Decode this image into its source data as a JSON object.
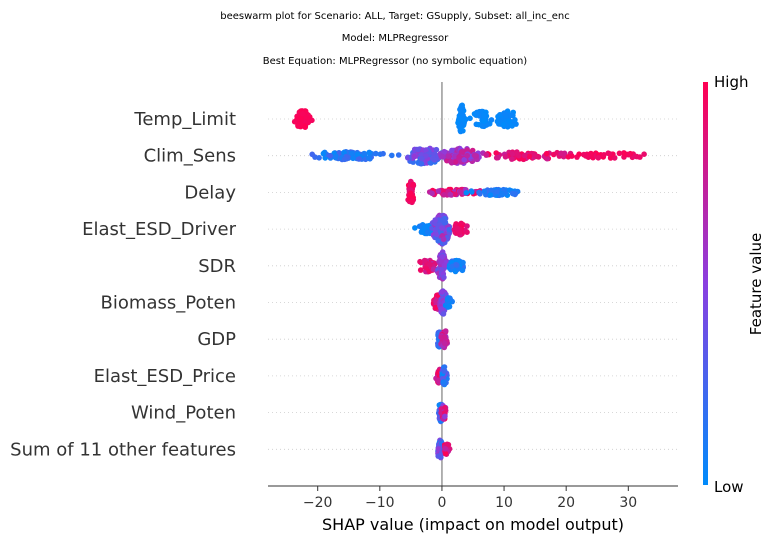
{
  "chart_data": {
    "type": "scatter",
    "subtype": "beeswarm",
    "title_lines": [
      "beeswarm plot for Scenario: ALL, Target: GSupply, Subset: all_inc_enc",
      "Model: MLPRegressor",
      "Best Equation: MLPRegressor (no symbolic equation)"
    ],
    "xlabel": "SHAP value (impact on model output)",
    "xlim": [
      -28,
      38
    ],
    "xticks": [
      {
        "value": -20,
        "label": "−20"
      },
      {
        "value": -10,
        "label": "−10"
      },
      {
        "value": 0,
        "label": "0"
      },
      {
        "value": 10,
        "label": "10"
      },
      {
        "value": 20,
        "label": "20"
      },
      {
        "value": 30,
        "label": "30"
      }
    ],
    "grid": "horizontal-dotted",
    "colorbar": {
      "label": "Feature value",
      "high_label": "High",
      "low_label": "Low",
      "high_color": "#ff0052",
      "low_color": "#008bfb"
    },
    "features": [
      {
        "name": "Temp_Limit",
        "clusters": [
          {
            "center": -22.5,
            "spread": 1.2,
            "count": 60,
            "color_low": 0.95,
            "color_high": 1.0,
            "width": 9
          },
          {
            "center": 3.2,
            "spread": 0.6,
            "count": 45,
            "color_low": 0.0,
            "color_high": 0.05,
            "width": 14
          },
          {
            "center": 6.5,
            "spread": 1.6,
            "count": 45,
            "color_low": 0.0,
            "color_high": 0.05,
            "width": 8
          },
          {
            "center": 10.5,
            "spread": 1.6,
            "count": 45,
            "color_low": 0.0,
            "color_high": 0.05,
            "width": 8
          }
        ]
      },
      {
        "name": "Clim_Sens",
        "clusters": [
          {
            "center": -15,
            "spread": 7,
            "count": 80,
            "color_low": 0.0,
            "color_high": 0.25,
            "width": 4
          },
          {
            "center": -3,
            "spread": 3,
            "count": 90,
            "color_low": 0.15,
            "color_high": 0.55,
            "width": 8
          },
          {
            "center": 3,
            "spread": 3,
            "count": 90,
            "color_low": 0.45,
            "color_high": 0.8,
            "width": 8
          },
          {
            "center": 14,
            "spread": 6,
            "count": 60,
            "color_low": 0.75,
            "color_high": 1.0,
            "width": 4
          },
          {
            "center": 27,
            "spread": 6,
            "count": 40,
            "color_low": 0.9,
            "color_high": 1.0,
            "width": 3
          }
        ]
      },
      {
        "name": "Delay",
        "clusters": [
          {
            "center": -5,
            "spread": 0.5,
            "count": 55,
            "color_low": 0.85,
            "color_high": 1.0,
            "width": 11
          },
          {
            "center": 2,
            "spread": 4,
            "count": 60,
            "color_low": 0.6,
            "color_high": 1.0,
            "width": 3
          },
          {
            "center": 9,
            "spread": 4,
            "count": 70,
            "color_low": 0.0,
            "color_high": 0.2,
            "width": 3
          }
        ]
      },
      {
        "name": "Elast_ESD_Driver",
        "clusters": [
          {
            "center": -2.5,
            "spread": 1.5,
            "count": 30,
            "color_low": 0.0,
            "color_high": 0.1,
            "width": 5
          },
          {
            "center": 0,
            "spread": 1.3,
            "count": 120,
            "color_low": 0.2,
            "color_high": 0.7,
            "width": 15
          },
          {
            "center": 2.8,
            "spread": 1.2,
            "count": 40,
            "color_low": 0.8,
            "color_high": 1.0,
            "width": 6
          }
        ]
      },
      {
        "name": "SDR",
        "clusters": [
          {
            "center": -2.5,
            "spread": 1.4,
            "count": 45,
            "color_low": 0.7,
            "color_high": 1.0,
            "width": 6
          },
          {
            "center": 0,
            "spread": 0.6,
            "count": 60,
            "color_low": 0.35,
            "color_high": 0.65,
            "width": 14
          },
          {
            "center": 2.5,
            "spread": 1.2,
            "count": 45,
            "color_low": 0.0,
            "color_high": 0.2,
            "width": 6
          }
        ]
      },
      {
        "name": "Biomass_Poten",
        "clusters": [
          {
            "center": -0.8,
            "spread": 0.6,
            "count": 45,
            "color_low": 0.7,
            "color_high": 1.0,
            "width": 8
          },
          {
            "center": 0.2,
            "spread": 0.5,
            "count": 55,
            "color_low": 0.3,
            "color_high": 0.6,
            "width": 12
          },
          {
            "center": 1.1,
            "spread": 0.5,
            "count": 25,
            "color_low": 0.0,
            "color_high": 0.15,
            "width": 5
          }
        ]
      },
      {
        "name": "GDP",
        "clusters": [
          {
            "center": -0.4,
            "spread": 0.4,
            "count": 40,
            "color_low": 0.0,
            "color_high": 0.3,
            "width": 8
          },
          {
            "center": 0.4,
            "spread": 0.5,
            "count": 40,
            "color_low": 0.6,
            "color_high": 1.0,
            "width": 9
          }
        ]
      },
      {
        "name": "Elast_ESD_Price",
        "clusters": [
          {
            "center": -0.5,
            "spread": 0.4,
            "count": 35,
            "color_low": 0.7,
            "color_high": 1.0,
            "width": 7
          },
          {
            "center": 0.4,
            "spread": 0.4,
            "count": 40,
            "color_low": 0.0,
            "color_high": 0.4,
            "width": 9
          }
        ]
      },
      {
        "name": "Wind_Poten",
        "clusters": [
          {
            "center": -0.2,
            "spread": 0.4,
            "count": 40,
            "color_low": 0.0,
            "color_high": 0.5,
            "width": 9
          },
          {
            "center": 0.3,
            "spread": 0.4,
            "count": 35,
            "color_low": 0.5,
            "color_high": 1.0,
            "width": 8
          }
        ]
      },
      {
        "name": "Sum of 11 other features",
        "clusters": [
          {
            "center": -0.3,
            "spread": 0.5,
            "count": 45,
            "color_low": 0.1,
            "color_high": 0.6,
            "width": 9
          },
          {
            "center": 0.7,
            "spread": 0.5,
            "count": 30,
            "color_low": 0.7,
            "color_high": 1.0,
            "width": 6
          }
        ]
      }
    ]
  }
}
